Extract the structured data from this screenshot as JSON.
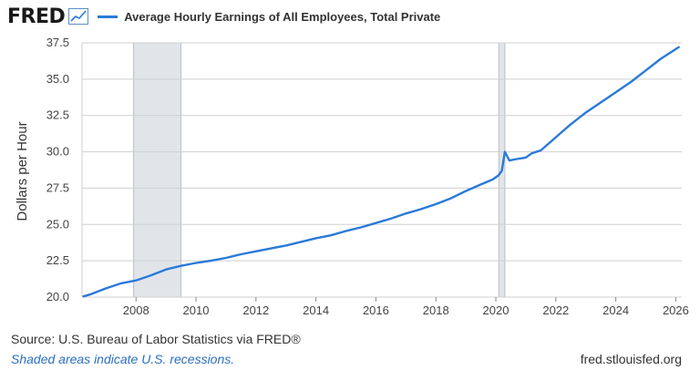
{
  "header": {
    "logo_text": "FRED",
    "logo_icon": "trend-chart-icon"
  },
  "chart_data": {
    "type": "line",
    "title": "Average Hourly Earnings of All Employees, Total Private",
    "xlabel": "",
    "ylabel": "Dollars per Hour",
    "series": [
      {
        "name": "Average Hourly Earnings of All Employees, Total Private",
        "color": "#2a7ad8",
        "points": [
          [
            2006.25,
            20.05
          ],
          [
            2006.5,
            20.2
          ],
          [
            2007.0,
            20.6
          ],
          [
            2007.5,
            20.95
          ],
          [
            2008.0,
            21.15
          ],
          [
            2008.5,
            21.5
          ],
          [
            2009.0,
            21.9
          ],
          [
            2009.5,
            22.15
          ],
          [
            2010.0,
            22.35
          ],
          [
            2010.5,
            22.5
          ],
          [
            2011.0,
            22.7
          ],
          [
            2011.5,
            22.95
          ],
          [
            2012.0,
            23.15
          ],
          [
            2012.5,
            23.35
          ],
          [
            2013.0,
            23.55
          ],
          [
            2013.5,
            23.8
          ],
          [
            2014.0,
            24.05
          ],
          [
            2014.5,
            24.25
          ],
          [
            2015.0,
            24.55
          ],
          [
            2015.5,
            24.8
          ],
          [
            2016.0,
            25.1
          ],
          [
            2016.5,
            25.4
          ],
          [
            2017.0,
            25.75
          ],
          [
            2017.5,
            26.05
          ],
          [
            2018.0,
            26.4
          ],
          [
            2018.5,
            26.8
          ],
          [
            2019.0,
            27.3
          ],
          [
            2019.5,
            27.75
          ],
          [
            2019.9,
            28.1
          ],
          [
            2020.1,
            28.4
          ],
          [
            2020.2,
            28.7
          ],
          [
            2020.3,
            30.0
          ],
          [
            2020.45,
            29.4
          ],
          [
            2020.7,
            29.5
          ],
          [
            2021.0,
            29.6
          ],
          [
            2021.2,
            29.9
          ],
          [
            2021.5,
            30.1
          ],
          [
            2022.0,
            31.0
          ],
          [
            2022.5,
            31.9
          ],
          [
            2023.0,
            32.7
          ],
          [
            2023.5,
            33.4
          ],
          [
            2024.0,
            34.1
          ],
          [
            2024.5,
            34.8
          ],
          [
            2025.0,
            35.6
          ],
          [
            2025.5,
            36.4
          ],
          [
            2026.1,
            37.2
          ]
        ]
      }
    ],
    "x_ticks": [
      "2008",
      "2010",
      "2012",
      "2014",
      "2016",
      "2018",
      "2020",
      "2022",
      "2024",
      "2026"
    ],
    "y_ticks": [
      "20.0",
      "22.5",
      "25.0",
      "27.5",
      "30.0",
      "32.5",
      "35.0",
      "37.5"
    ],
    "xlim": [
      2006.2,
      2026.2
    ],
    "ylim": [
      20.0,
      37.5
    ],
    "grid": "horizontal",
    "recessions": [
      [
        2007.92,
        2009.5
      ],
      [
        2020.1,
        2020.3
      ]
    ],
    "recession_color": "#e1e5ea",
    "line_color": "#2a7ad8"
  },
  "footer": {
    "source_text": "Source: U.S. Bureau of Labor Statistics via FRED®",
    "note_text": "Shaded areas indicate U.S. recessions.",
    "url_text": "fred.stlouisfed.org"
  }
}
